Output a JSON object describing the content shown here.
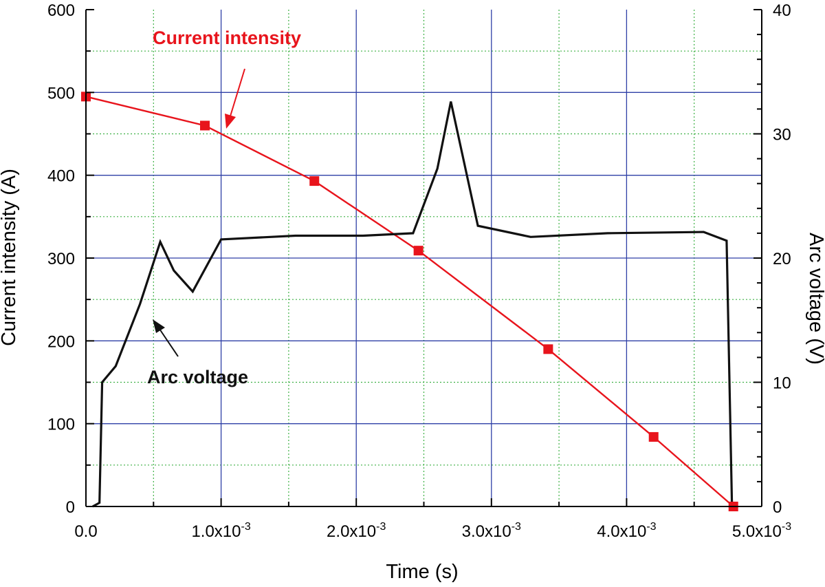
{
  "chart_data": {
    "type": "line",
    "xlabel": "Time (s)",
    "ylabel": "Current intensity (A)",
    "y2label": "Arc voltage (V)",
    "xlim": [
      0,
      0.005
    ],
    "ylim": [
      0,
      600
    ],
    "y2lim": [
      0,
      40
    ],
    "xticks": [
      0,
      0.001,
      0.002,
      0.003,
      0.004,
      0.005
    ],
    "xtick_labels": [
      {
        "base": "0.0",
        "exp": ""
      },
      {
        "base": "1.0x10",
        "exp": "-3"
      },
      {
        "base": "2.0x10",
        "exp": "-3"
      },
      {
        "base": "3.0x10",
        "exp": "-3"
      },
      {
        "base": "4.0x10",
        "exp": "-3"
      },
      {
        "base": "5.0x10",
        "exp": "-3"
      }
    ],
    "yticks": [
      0,
      100,
      200,
      300,
      400,
      500,
      600
    ],
    "ytick_labels": [
      "0",
      "100",
      "200",
      "300",
      "400",
      "500",
      "600"
    ],
    "y2ticks": [
      0,
      10,
      20,
      30,
      40
    ],
    "y2tick_labels": [
      "0",
      "10",
      "20",
      "30",
      "40"
    ],
    "grid": true,
    "series": [
      {
        "axis": "left",
        "color": "#e8141c",
        "marker": "square",
        "x": [
          0.0,
          0.00088,
          0.00169,
          0.00246,
          0.00342,
          0.0042,
          0.00479
        ],
        "y": [
          495,
          460,
          393,
          309,
          190,
          84,
          0
        ]
      },
      {
        "axis": "right",
        "color": "#111111",
        "marker": "none",
        "x": [
          5e-05,
          0.0001,
          0.00012,
          0.00022,
          0.0004,
          0.00055,
          0.00065,
          0.00079,
          0.001,
          0.00155,
          0.00205,
          0.00242,
          0.0026,
          0.0027,
          0.0029,
          0.00329,
          0.00386,
          0.00457,
          0.00474,
          0.00478
        ],
        "y": [
          0,
          0.3,
          10,
          11.3,
          16.3,
          21.3,
          19,
          17.3,
          21.5,
          21.8,
          21.8,
          22,
          27.2,
          32.6,
          22.6,
          21.7,
          22,
          22.1,
          21.4,
          0
        ]
      }
    ],
    "annotations": [
      {
        "text": "Current intensity",
        "color": "#e8141c"
      },
      {
        "text": "Arc voltage",
        "color": "#111111"
      }
    ],
    "colors": {
      "major_grid": "#2e3fa6",
      "minor_grid": "#3cb043",
      "current": "#e8141c",
      "voltage": "#111111"
    }
  }
}
